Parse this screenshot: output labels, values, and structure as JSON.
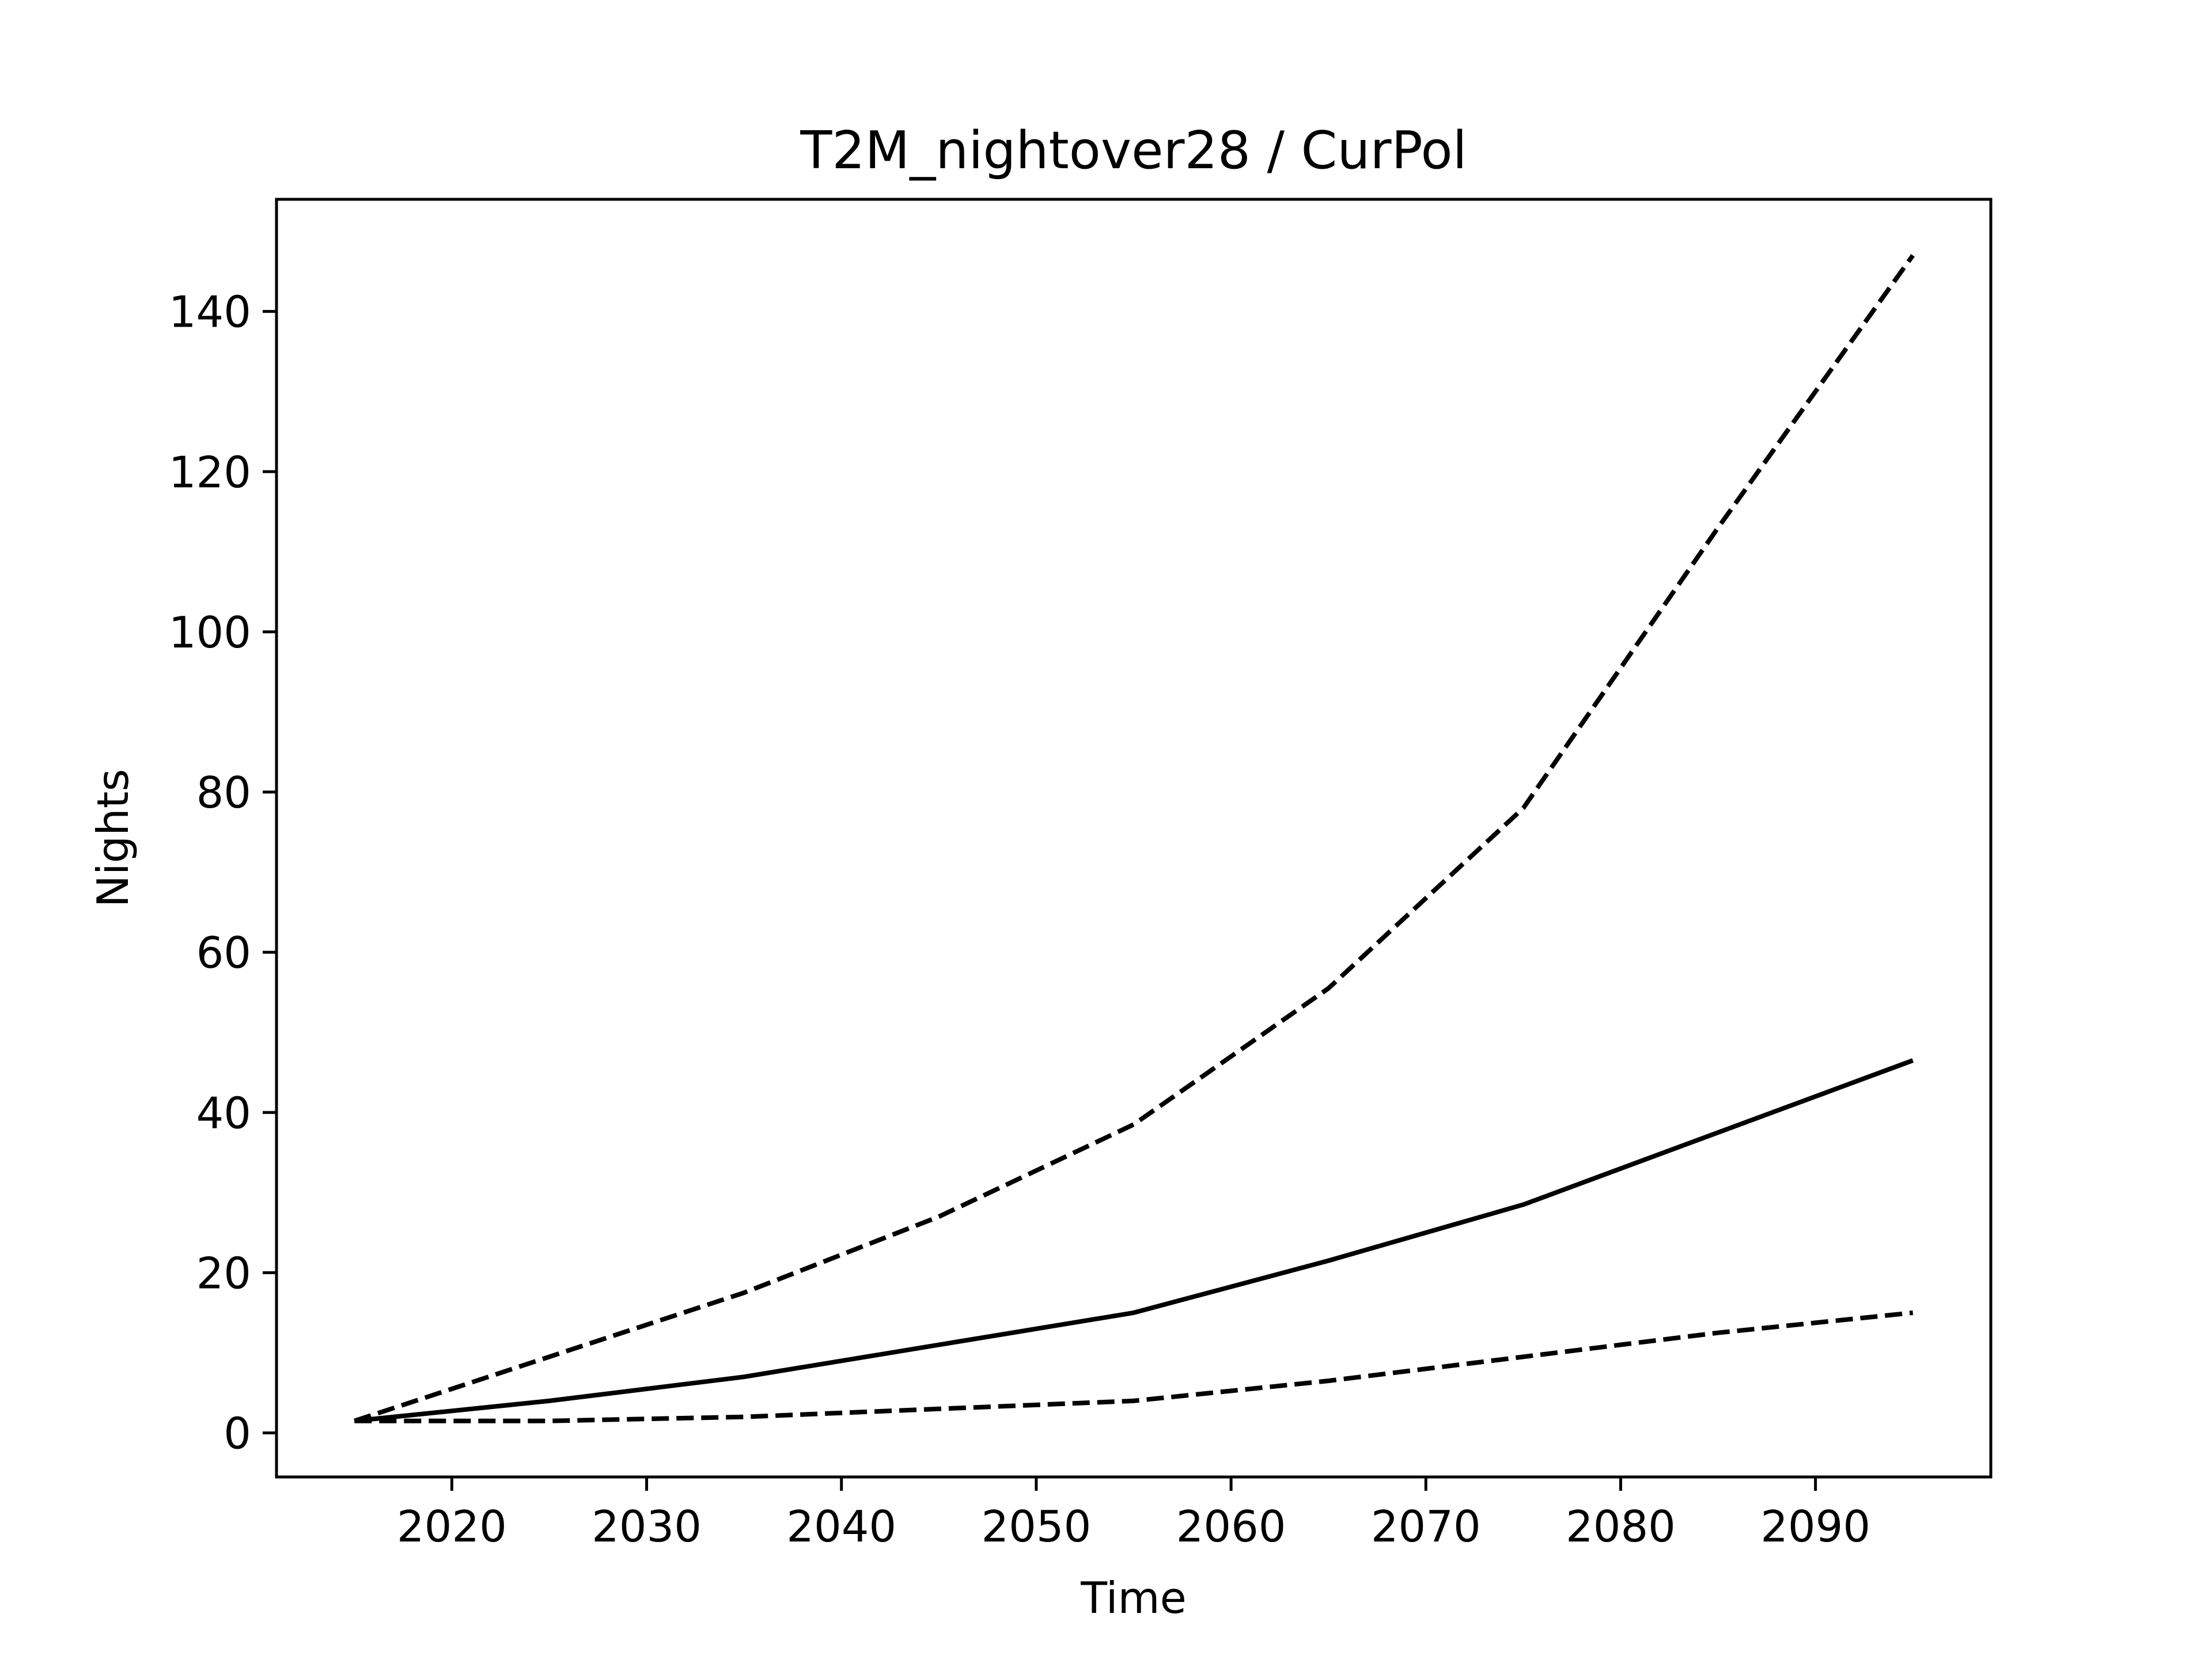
{
  "chart_data": {
    "type": "line",
    "title": "T2M_nightover28 / CurPol",
    "xlabel": "Time",
    "ylabel": "Nights",
    "xlim": [
      2011,
      2099
    ],
    "ylim": [
      -5.5,
      154
    ],
    "xticks": [
      2020,
      2030,
      2040,
      2050,
      2060,
      2070,
      2080,
      2090
    ],
    "yticks": [
      0,
      20,
      40,
      60,
      80,
      100,
      120,
      140
    ],
    "grid": false,
    "legend": false,
    "x": [
      2015,
      2025,
      2035,
      2045,
      2055,
      2065,
      2075,
      2085,
      2095
    ],
    "series": [
      {
        "values": [
          1.5,
          9.5,
          17.5,
          27,
          38.5,
          55.5,
          78,
          113,
          147
        ],
        "style": "dashed",
        "color": "#000000"
      },
      {
        "values": [
          1.5,
          4,
          7,
          11,
          15,
          21.5,
          28.5,
          37.5,
          46.5
        ],
        "style": "solid",
        "color": "#000000"
      },
      {
        "values": [
          1.5,
          1.5,
          2,
          3,
          4,
          6.5,
          9.5,
          12.5,
          15
        ],
        "style": "dashed",
        "color": "#000000"
      }
    ]
  }
}
